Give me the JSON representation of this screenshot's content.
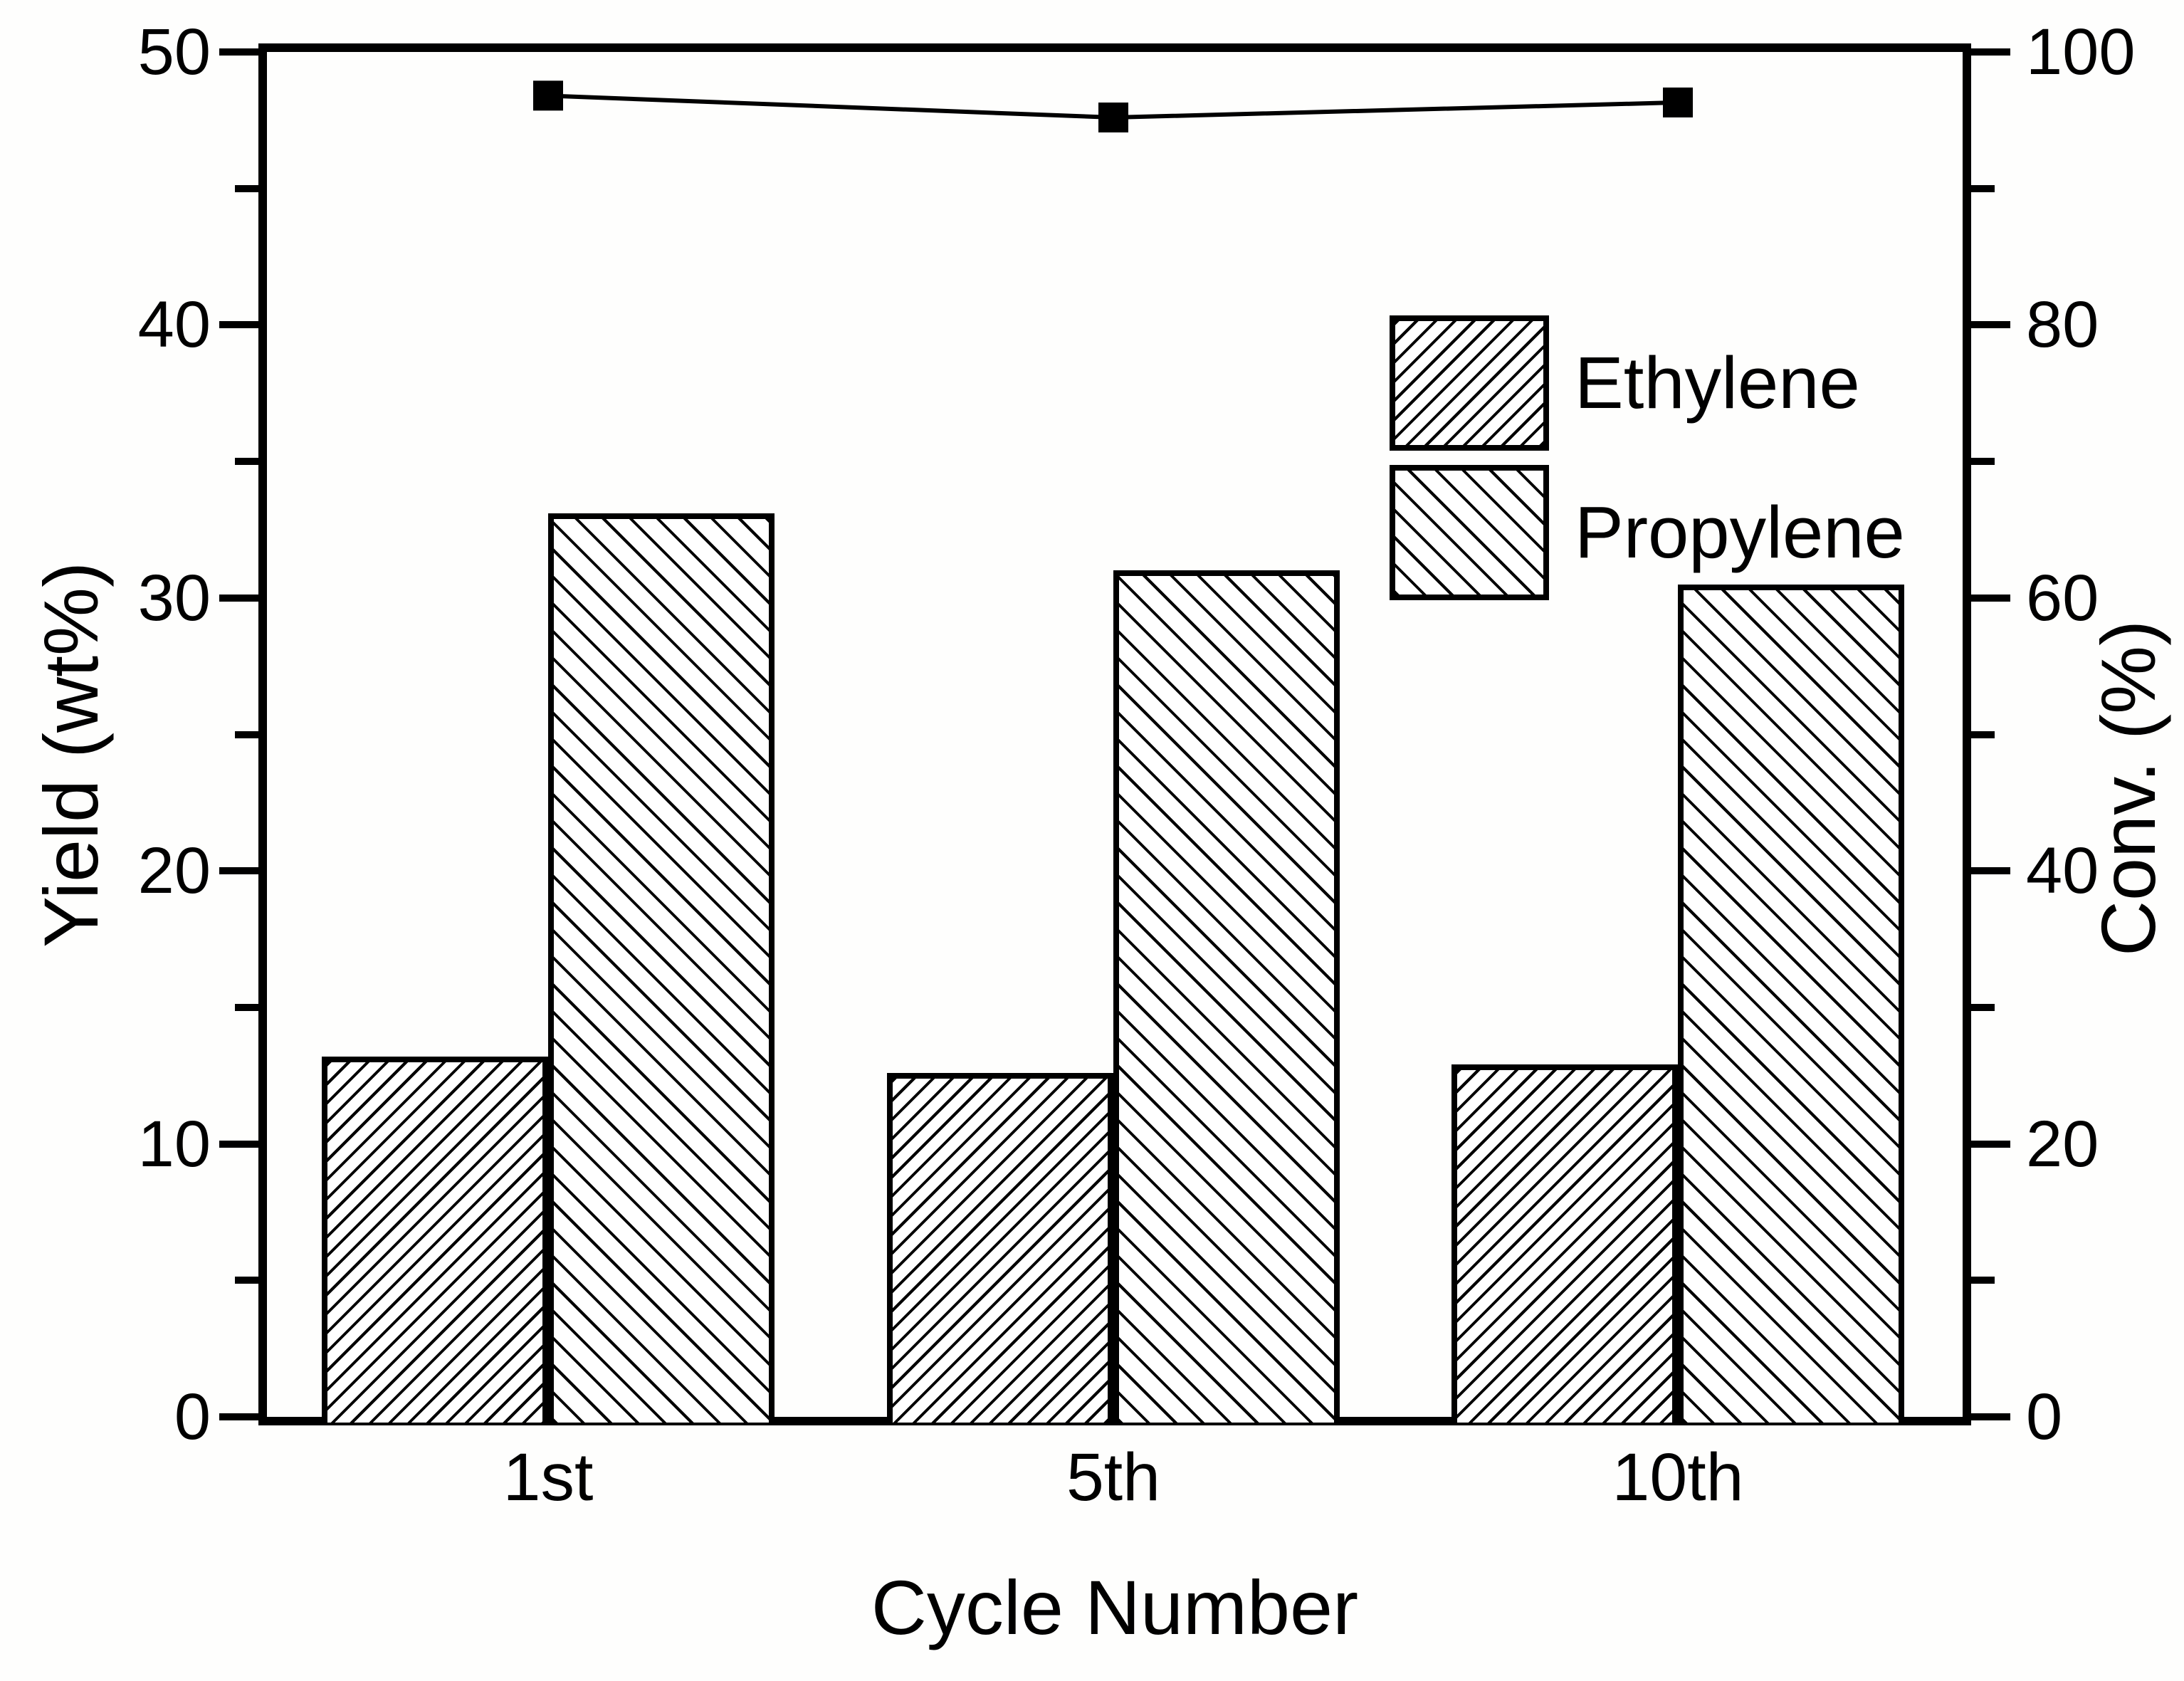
{
  "chart_data": {
    "type": "bar",
    "subtype": "grouped-bars-with-line-overlay",
    "categories": [
      "1st",
      "5th",
      "10th"
    ],
    "series": [
      {
        "name": "Ethylene",
        "hatch": "/",
        "axis": "left",
        "values": [
          13.2,
          12.6,
          12.9
        ]
      },
      {
        "name": "Propylene",
        "hatch": "\\",
        "axis": "left",
        "values": [
          33.1,
          31.0,
          30.5
        ]
      }
    ],
    "overlay_line": {
      "name": "Conversion",
      "marker": "filled-black-square",
      "axis": "right",
      "values": [
        96.8,
        95.2,
        96.3
      ]
    },
    "x_axis": {
      "label": "Cycle Number"
    },
    "left_axis": {
      "label": "Yield (wt%)",
      "min": 0,
      "max": 50,
      "major_ticks": [
        0,
        10,
        20,
        30,
        40,
        50
      ],
      "minor_ticks": [
        5,
        15,
        25,
        35,
        45
      ]
    },
    "right_axis": {
      "label": "Conv. (%)",
      "min": 0,
      "max": 100,
      "major_ticks": [
        0,
        20,
        40,
        60,
        80,
        100
      ],
      "minor_ticks": [
        10,
        30,
        50,
        70,
        90
      ]
    },
    "legend": {
      "position": "upper-right-inside"
    },
    "grid": false,
    "colors": {
      "foreground": "#000000",
      "background": "#ffffff"
    }
  }
}
